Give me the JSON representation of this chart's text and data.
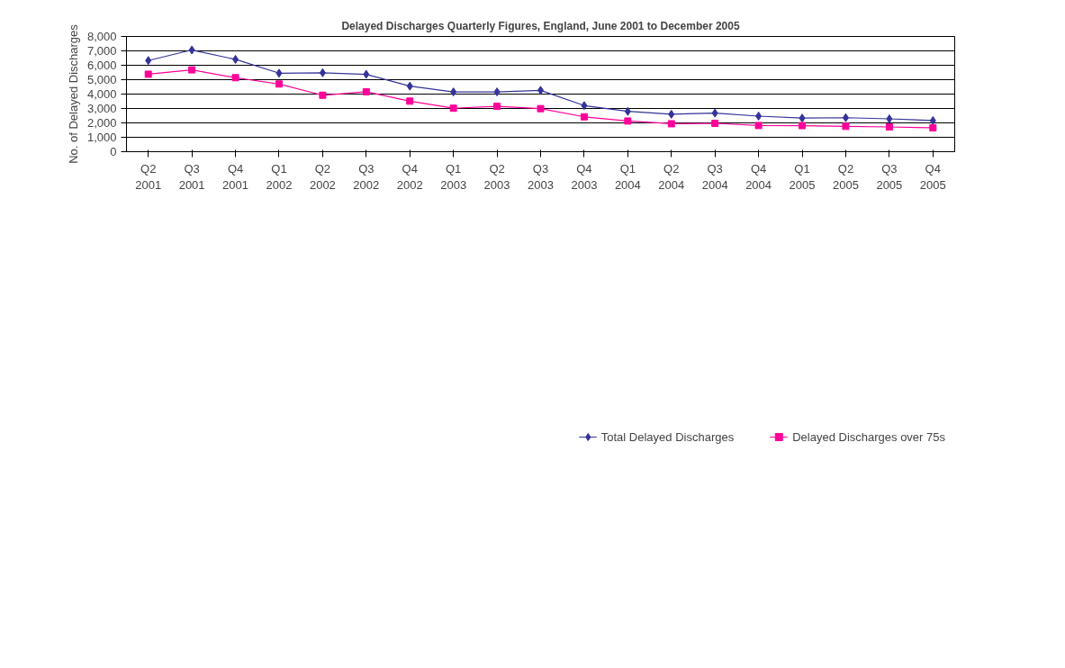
{
  "chart_data": {
    "type": "line",
    "title": "Delayed Discharges Quarterly Figures, England, June 2001 to December 2005",
    "ylabel": "No. of Delayed Discharges",
    "categories": [
      "Q2\n2001",
      "Q3\n2001",
      "Q4\n2001",
      "Q1\n2002",
      "Q2\n2002",
      "Q3\n2002",
      "Q4\n2002",
      "Q1\n2003",
      "Q2\n2003",
      "Q3\n2003",
      "Q4\n2003",
      "Q1\n2004",
      "Q2\n2004",
      "Q3\n2004",
      "Q4\n2004",
      "Q1\n2005",
      "Q2\n2005",
      "Q3\n2005",
      "Q4\n2005"
    ],
    "series": [
      {
        "name": "Total Delayed Discharges",
        "color": "#333399",
        "marker": "diamond",
        "values": [
          6330,
          7060,
          6410,
          5450,
          5480,
          5370,
          4550,
          4150,
          4150,
          4260,
          3200,
          2800,
          2600,
          2680,
          2470,
          2330,
          2360,
          2280,
          2160
        ]
      },
      {
        "name": "Delayed Discharges over 75s",
        "color": "#ff0099",
        "marker": "square",
        "values": [
          5380,
          5680,
          5140,
          4700,
          3920,
          4160,
          3510,
          3020,
          3150,
          2990,
          2420,
          2130,
          1940,
          1970,
          1820,
          1810,
          1760,
          1720,
          1660
        ]
      }
    ],
    "ylim": [
      0,
      8000
    ],
    "yticks": [
      {
        "value": 0,
        "label": "0"
      },
      {
        "value": 1000,
        "label": "1,000"
      },
      {
        "value": 2000,
        "label": "2,000"
      },
      {
        "value": 3000,
        "label": "3,000"
      },
      {
        "value": 4000,
        "label": "4,000"
      },
      {
        "value": 5000,
        "label": "5,000"
      },
      {
        "value": 6000,
        "label": "6,000"
      },
      {
        "value": 7000,
        "label": "7,000"
      },
      {
        "value": 8000,
        "label": "8,000"
      }
    ],
    "grid": "y",
    "legend": "bottom"
  }
}
